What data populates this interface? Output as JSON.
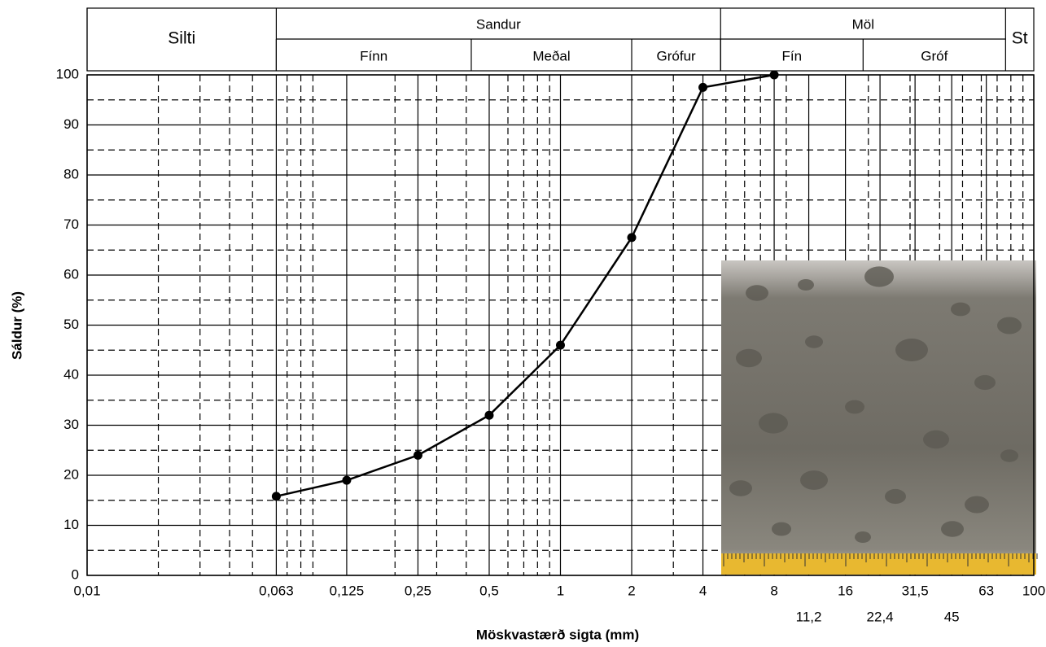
{
  "chart_data": {
    "type": "line",
    "x_label": "Möskvastærð sigta (mm)",
    "y_label": "Sáldur (%)",
    "x": [
      0.063,
      0.125,
      0.25,
      0.5,
      1,
      2,
      4,
      8
    ],
    "values": [
      15.8,
      19,
      24,
      32,
      46,
      67.5,
      97.5,
      100
    ],
    "color": "#000000",
    "xlim": [
      0.01,
      100
    ],
    "ylim": [
      0,
      100
    ],
    "x_log": true,
    "xticks": [
      {
        "value": 0.01,
        "label": "0,01"
      },
      {
        "value": 0.063,
        "label": "0,063"
      },
      {
        "value": 0.125,
        "label": "0,125"
      },
      {
        "value": 0.25,
        "label": "0,25"
      },
      {
        "value": 0.5,
        "label": "0,5"
      },
      1,
      2,
      4,
      8,
      16,
      {
        "value": 31.5,
        "label": "31,5"
      },
      63,
      100
    ],
    "xticks_lower": [
      {
        "value": 11.2,
        "label": "11,2"
      },
      {
        "value": 22.4,
        "label": "22,4"
      },
      45
    ],
    "minor_xticks": [
      0.02,
      0.03,
      0.04,
      0.05,
      0.07,
      0.08,
      0.09,
      0.2,
      0.3,
      0.4,
      0.6,
      0.7,
      0.8,
      0.9,
      3,
      5,
      6,
      7,
      9,
      20,
      30,
      40,
      50,
      60,
      70,
      80,
      90
    ],
    "yticks": [
      0,
      10,
      20,
      30,
      40,
      50,
      60,
      70,
      80,
      90,
      100
    ],
    "minor_yticks": [
      5,
      15,
      25,
      35,
      45,
      55,
      65,
      75,
      85,
      95
    ],
    "zones": [
      {
        "label": "Silti",
        "range": [
          0.01,
          0.063
        ]
      },
      {
        "label": "Sandur",
        "range": [
          0.063,
          4.75
        ]
      },
      {
        "label": "Möl",
        "range": [
          4.75,
          76
        ]
      },
      {
        "label": "St",
        "range": [
          76,
          100
        ]
      }
    ],
    "subzones": [
      {
        "label": "Fínn",
        "range": [
          0.063,
          0.42
        ]
      },
      {
        "label": "Meðal",
        "range": [
          0.42,
          2
        ]
      },
      {
        "label": "Grófur",
        "range": [
          2,
          4.75
        ]
      },
      {
        "label": "Fín",
        "range": [
          4.75,
          19
        ]
      },
      {
        "label": "Gróf",
        "range": [
          19,
          76
        ]
      }
    ]
  }
}
